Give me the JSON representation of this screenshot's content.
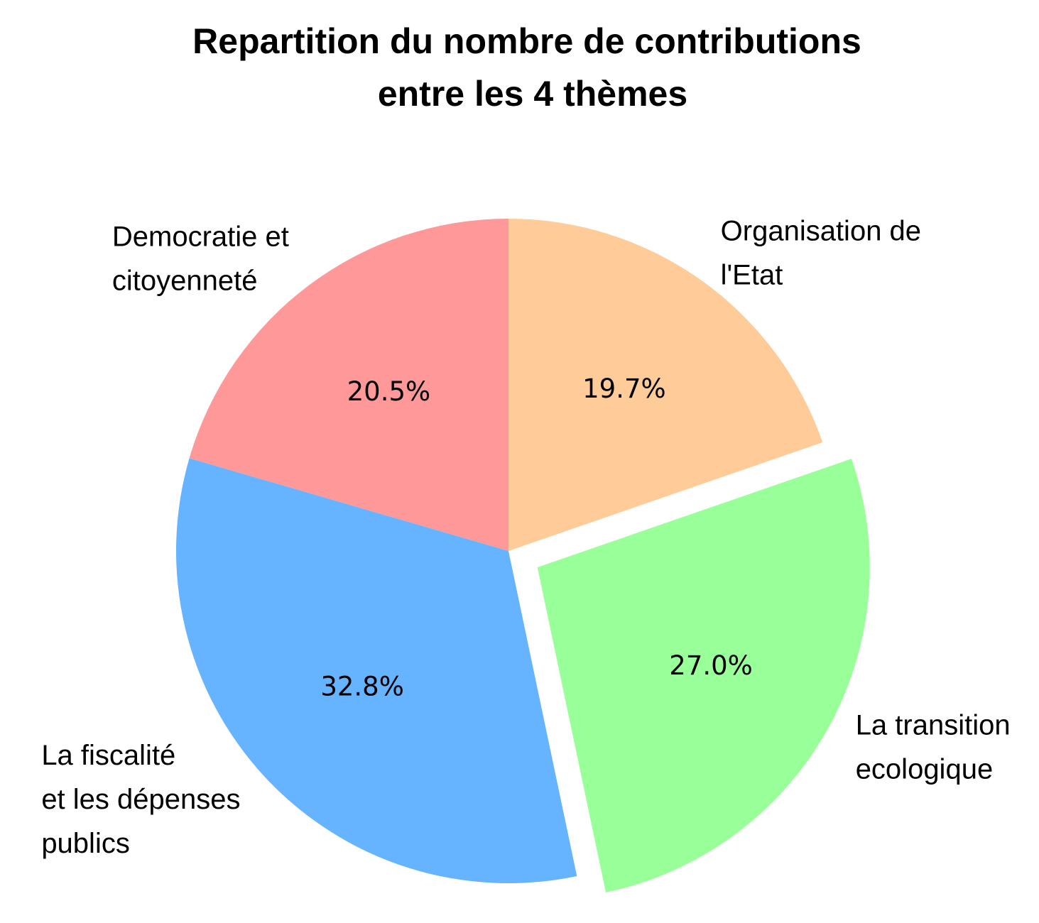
{
  "chart_data": {
    "type": "pie",
    "title_lines": [
      "Repartition du nombre de contributions",
      "entre les 4 thèmes"
    ],
    "start_angle_deg": 90,
    "direction": "counterclockwise",
    "slices": [
      {
        "label_lines": [
          "Democratie et",
          "citoyenneté"
        ],
        "value": 20.5,
        "pct_label": "20.5%",
        "color": "#ff9999",
        "explode": 0
      },
      {
        "label_lines": [
          "La fiscalité",
          "et les dépenses",
          "publics"
        ],
        "value": 32.8,
        "pct_label": "32.8%",
        "color": "#66b3ff",
        "explode": 0
      },
      {
        "label_lines": [
          "La transition",
          "ecologique"
        ],
        "value": 27.0,
        "pct_label": "27.0%",
        "color": "#99ff99",
        "explode": 0.1
      },
      {
        "label_lines": [
          "Organisation de",
          "l'Etat"
        ],
        "value": 19.7,
        "pct_label": "19.7%",
        "color": "#ffcc99",
        "explode": 0
      }
    ]
  }
}
